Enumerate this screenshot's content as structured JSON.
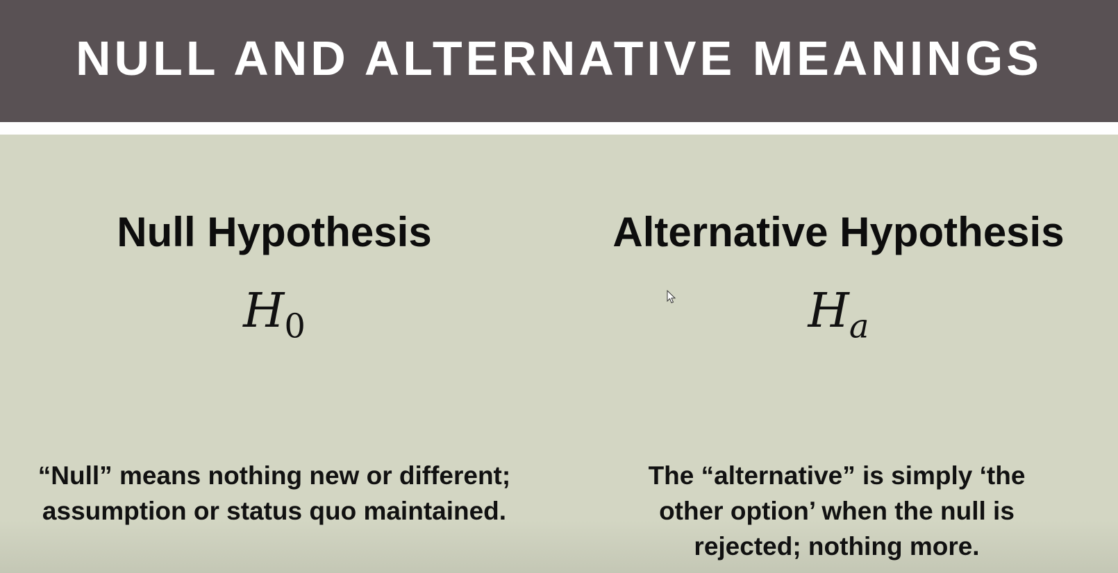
{
  "slide": {
    "title": "NULL AND ALTERNATIVE MEANINGS"
  },
  "left": {
    "heading": "Null Hypothesis",
    "symbol_base": "H",
    "symbol_subscript": "0",
    "description_line1": "“Null” means nothing new or different;",
    "description_line2": "assumption or status quo maintained."
  },
  "right": {
    "heading": "Alternative Hypothesis",
    "symbol_base": "H",
    "symbol_subscript": "a",
    "description_line1": "The “alternative” is simply ‘the",
    "description_line2": "other option’ when the null is",
    "description_line3": "rejected; nothing more."
  },
  "colors": {
    "title_bar": "#595154",
    "background": "#d3d6c3",
    "stripe": "#ffffff",
    "text": "#111111"
  },
  "icons": {
    "cursor": "mouse-pointer-icon"
  }
}
